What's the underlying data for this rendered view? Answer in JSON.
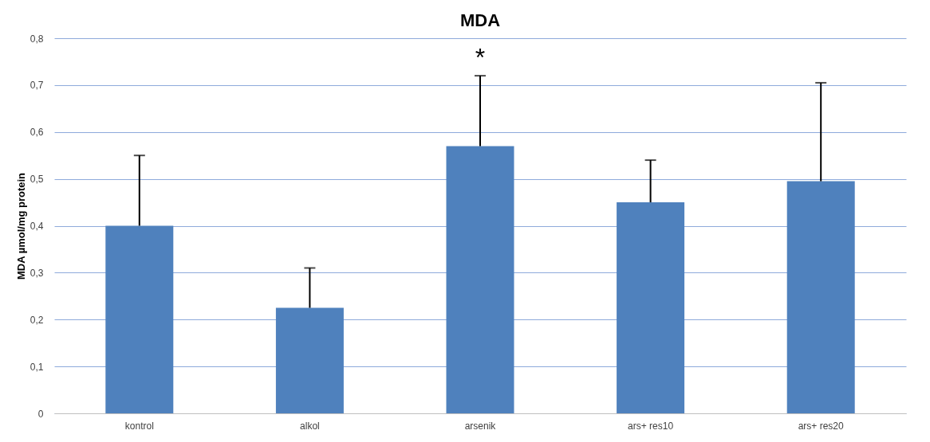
{
  "chart_data": {
    "type": "bar",
    "title": "MDA",
    "ylabel": "MDA µmol/mg protein",
    "categories": [
      "kontrol",
      "alkol",
      "arsenik",
      "ars+ res10",
      "ars+ res20"
    ],
    "values": [
      0.4,
      0.225,
      0.57,
      0.45,
      0.495
    ],
    "errors": [
      [
        0.4,
        0.55
      ],
      [
        0.225,
        0.31
      ],
      [
        0.57,
        0.72
      ],
      [
        0.45,
        0.54
      ],
      [
        0.495,
        0.705
      ]
    ],
    "color": "#4f81bd",
    "ylim": [
      0,
      0.8
    ],
    "yticks": [
      0,
      {
        "value": 0.1,
        "label": "0,1"
      },
      {
        "value": 0.2,
        "label": "0,2"
      },
      {
        "value": 0.3,
        "label": "0,3"
      },
      {
        "value": 0.4,
        "label": "0,4"
      },
      {
        "value": 0.5,
        "label": "0,5"
      },
      {
        "value": 0.6,
        "label": "0,6"
      },
      {
        "value": 0.7,
        "label": "0,7"
      },
      {
        "value": 0.8,
        "label": "0,8"
      }
    ],
    "grid": "y",
    "annotations": [
      "*"
    ]
  }
}
